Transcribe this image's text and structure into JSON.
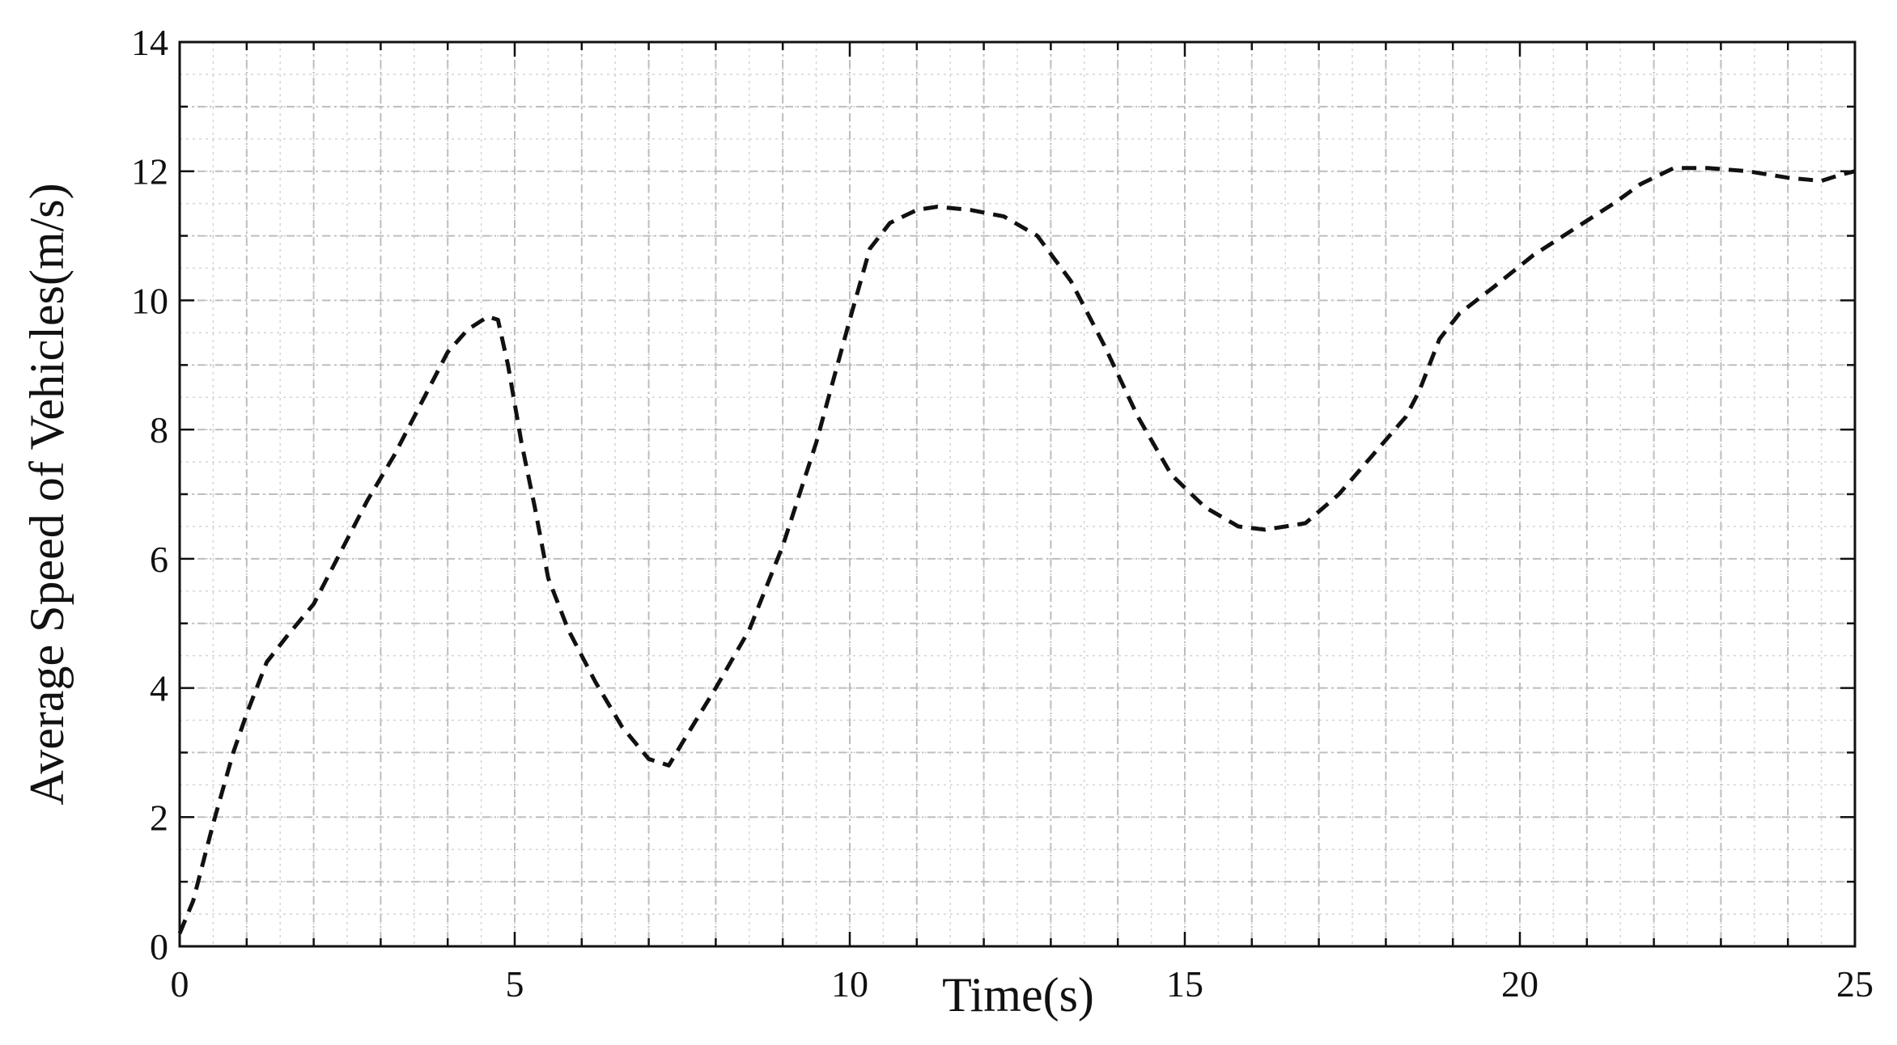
{
  "chart_data": {
    "type": "line",
    "title": "",
    "xlabel": "Time(s)",
    "ylabel": "Average Speed of  Vehicles(m/s)",
    "xlim": [
      0,
      25
    ],
    "ylim": [
      0,
      14
    ],
    "x_ticks": [
      0,
      5,
      10,
      15,
      20,
      25
    ],
    "y_ticks": [
      0,
      2,
      4,
      6,
      8,
      10,
      12,
      14
    ],
    "x_minor_step": 1,
    "y_minor_step": 1,
    "grid": true,
    "line_style": "dashed",
    "line_color": "#111111",
    "series": [
      {
        "x": [
          0,
          0.2,
          0.5,
          0.8,
          1.0,
          1.3,
          1.6,
          2.0,
          2.4,
          2.8,
          3.2,
          3.6,
          4.0,
          4.3,
          4.6,
          4.75,
          4.9,
          5.1,
          5.3,
          5.5,
          5.8,
          6.2,
          6.6,
          7.0,
          7.3,
          7.5,
          8.0,
          8.5,
          9.0,
          9.5,
          10.0,
          10.3,
          10.6,
          11.0,
          11.3,
          11.8,
          12.3,
          12.8,
          13.3,
          13.8,
          14.3,
          14.8,
          15.3,
          15.8,
          16.2,
          16.8,
          17.3,
          17.8,
          18.3,
          18.5,
          18.8,
          19.1,
          19.6,
          20.2,
          20.8,
          21.4,
          21.8,
          22.3,
          22.8,
          23.4,
          24.0,
          24.5,
          24.8,
          25.0
        ],
        "y": [
          0.2,
          0.7,
          1.9,
          3.0,
          3.6,
          4.4,
          4.8,
          5.3,
          6.1,
          6.9,
          7.6,
          8.4,
          9.2,
          9.55,
          9.75,
          9.7,
          9.0,
          7.8,
          6.8,
          5.7,
          4.9,
          4.1,
          3.4,
          2.9,
          2.8,
          3.15,
          4.0,
          4.9,
          6.2,
          7.8,
          9.7,
          10.8,
          11.2,
          11.4,
          11.45,
          11.4,
          11.3,
          11.0,
          10.3,
          9.3,
          8.2,
          7.3,
          6.8,
          6.5,
          6.45,
          6.55,
          7.0,
          7.6,
          8.2,
          8.6,
          9.4,
          9.8,
          10.2,
          10.7,
          11.1,
          11.5,
          11.8,
          12.05,
          12.05,
          12.0,
          11.9,
          11.85,
          11.95,
          12.0
        ]
      }
    ]
  }
}
